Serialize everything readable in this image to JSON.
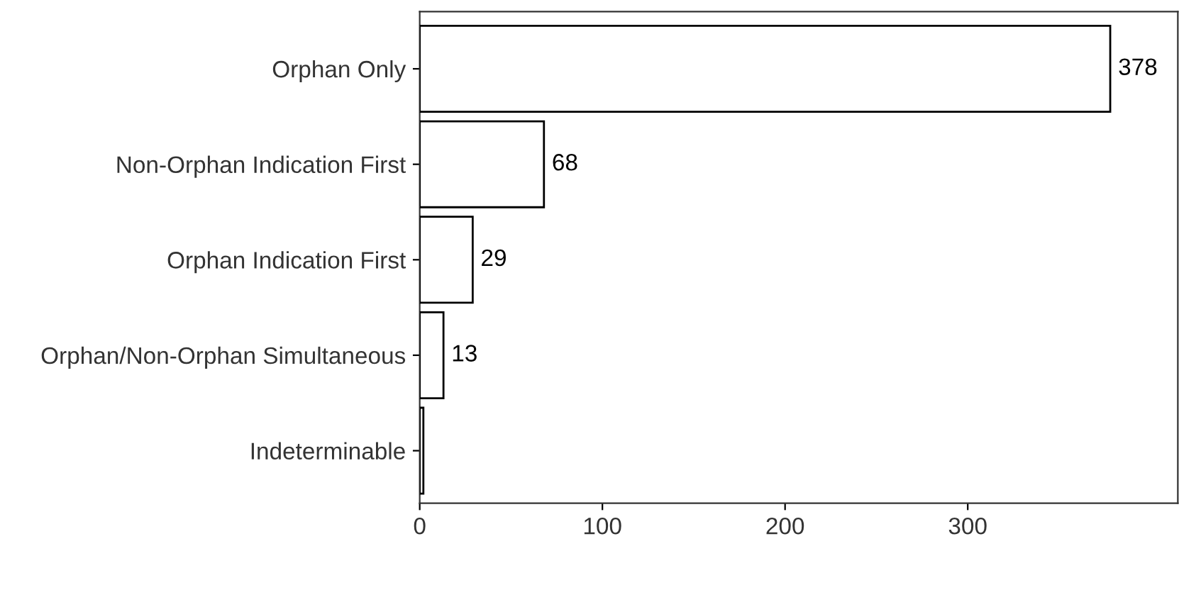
{
  "chart_data": {
    "type": "bar",
    "orientation": "horizontal",
    "categories": [
      "Orphan Only",
      "Non-Orphan Indication First",
      "Orphan Indication First",
      "Orphan/Non-Orphan Simultaneous",
      "Indeterminable"
    ],
    "values": [
      378,
      68,
      29,
      13,
      2
    ],
    "value_labels": [
      "378",
      "68",
      "29",
      "13",
      null
    ],
    "color": "#ffffff",
    "xlim": [
      0,
      415
    ],
    "xticks": [
      0,
      100,
      200,
      300
    ],
    "grid": false,
    "legend": false
  }
}
